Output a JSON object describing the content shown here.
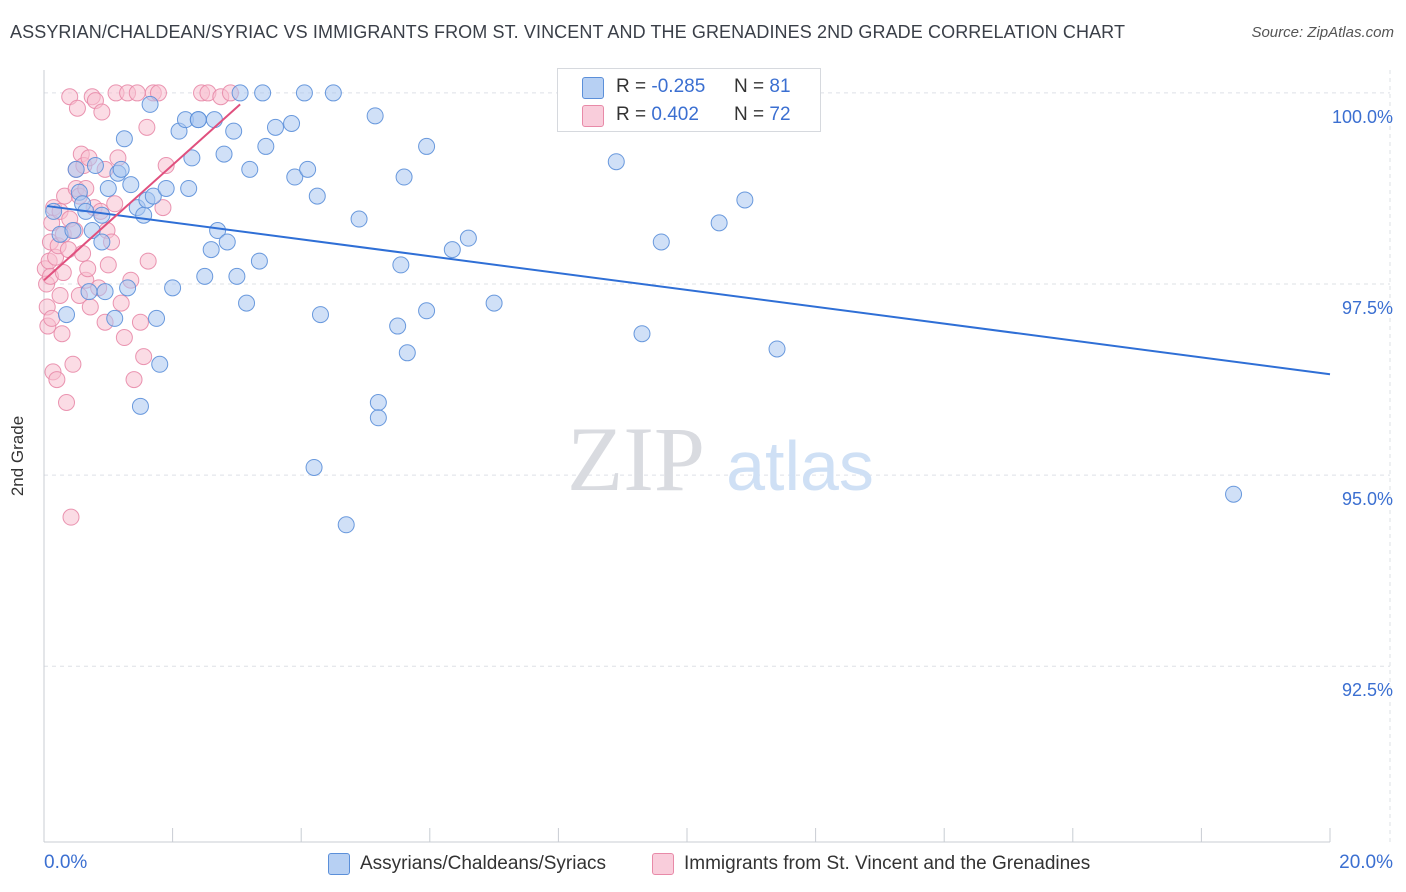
{
  "header": {
    "title": "ASSYRIAN/CHALDEAN/SYRIAC VS IMMIGRANTS FROM ST. VINCENT AND THE GRENADINES 2ND GRADE CORRELATION CHART",
    "source": "Source: ZipAtlas.com"
  },
  "legend": {
    "series1": {
      "r_label": "R =",
      "r_value": "-0.285",
      "n_label": "N =",
      "n_value": "81"
    },
    "series2": {
      "r_label": "R =",
      "r_value": "0.402",
      "n_label": "N =",
      "n_value": "72"
    }
  },
  "watermark": {
    "zip": "ZIP",
    "atlas": "atlas"
  },
  "colors": {
    "blue_fill": "#a9c7f0",
    "blue_stroke": "#5b8fd9",
    "blue_line": "#2f6fd6",
    "pink_fill": "#f7c0d0",
    "pink_stroke": "#e88aa8",
    "pink_line": "#e0507e",
    "tick_label": "#3b6fd1",
    "grid": "#dde0e6"
  },
  "chart_data": {
    "type": "scatter",
    "title": "ASSYRIAN/CHALDEAN/SYRIAC VS IMMIGRANTS FROM ST. VINCENT AND THE GRENADINES 2ND GRADE CORRELATION CHART",
    "xlabel": "",
    "ylabel": "2nd Grade",
    "xlim": [
      0,
      20
    ],
    "ylim": [
      90.2,
      100.3
    ],
    "x_tick_labels": [
      "0.0%",
      "20.0%"
    ],
    "y_ticks": [
      92.5,
      95.0,
      97.5,
      100.0
    ],
    "y_tick_labels": [
      "92.5%",
      "95.0%",
      "97.5%",
      "100.0%"
    ],
    "grid": true,
    "legend_position": "top-center",
    "series": [
      {
        "name": "Assyrians/Chaldeans/Syriacs",
        "color": "blue",
        "trend": {
          "x": [
            0.05,
            20.0
          ],
          "y": [
            98.52,
            96.32
          ]
        },
        "points": [
          [
            0.15,
            98.45
          ],
          [
            0.25,
            98.15
          ],
          [
            0.35,
            97.1
          ],
          [
            0.45,
            98.2
          ],
          [
            0.5,
            99.0
          ],
          [
            0.55,
            98.7
          ],
          [
            0.6,
            98.55
          ],
          [
            0.65,
            98.45
          ],
          [
            0.7,
            97.4
          ],
          [
            0.75,
            98.2
          ],
          [
            0.8,
            99.05
          ],
          [
            0.9,
            98.05
          ],
          [
            0.95,
            97.4
          ],
          [
            1.0,
            98.75
          ],
          [
            1.1,
            97.05
          ],
          [
            1.15,
            98.95
          ],
          [
            1.25,
            99.4
          ],
          [
            1.3,
            97.45
          ],
          [
            1.35,
            98.8
          ],
          [
            1.45,
            98.5
          ],
          [
            1.5,
            95.9
          ],
          [
            1.55,
            98.4
          ],
          [
            1.6,
            98.6
          ],
          [
            1.65,
            99.85
          ],
          [
            1.7,
            98.65
          ],
          [
            1.75,
            97.05
          ],
          [
            1.8,
            96.45
          ],
          [
            1.9,
            98.75
          ],
          [
            2.0,
            97.45
          ],
          [
            2.1,
            99.5
          ],
          [
            2.2,
            99.65
          ],
          [
            2.25,
            98.75
          ],
          [
            2.3,
            99.15
          ],
          [
            2.4,
            99.65
          ],
          [
            2.5,
            97.6
          ],
          [
            2.6,
            97.95
          ],
          [
            2.65,
            99.65
          ],
          [
            2.7,
            98.2
          ],
          [
            2.8,
            99.2
          ],
          [
            2.85,
            98.05
          ],
          [
            2.95,
            99.5
          ],
          [
            3.0,
            97.6
          ],
          [
            3.05,
            100.0
          ],
          [
            3.15,
            97.25
          ],
          [
            3.2,
            99.0
          ],
          [
            3.35,
            97.8
          ],
          [
            3.4,
            100.0
          ],
          [
            3.45,
            99.3
          ],
          [
            3.6,
            99.55
          ],
          [
            3.85,
            99.6
          ],
          [
            3.9,
            98.9
          ],
          [
            4.05,
            100.0
          ],
          [
            4.2,
            95.1
          ],
          [
            4.25,
            98.65
          ],
          [
            4.3,
            97.1
          ],
          [
            4.5,
            100.0
          ],
          [
            4.7,
            94.35
          ],
          [
            4.9,
            98.35
          ],
          [
            5.15,
            99.7
          ],
          [
            5.2,
            95.95
          ],
          [
            5.2,
            95.75
          ],
          [
            5.5,
            96.95
          ],
          [
            5.55,
            97.75
          ],
          [
            5.6,
            98.9
          ],
          [
            5.65,
            96.6
          ],
          [
            5.95,
            97.15
          ],
          [
            5.95,
            99.3
          ],
          [
            6.35,
            97.95
          ],
          [
            6.6,
            98.1
          ],
          [
            7.0,
            97.25
          ],
          [
            8.9,
            99.1
          ],
          [
            9.3,
            96.85
          ],
          [
            9.6,
            98.05
          ],
          [
            10.5,
            98.3
          ],
          [
            10.9,
            98.6
          ],
          [
            11.4,
            96.65
          ],
          [
            18.5,
            94.75
          ],
          [
            2.4,
            99.65
          ],
          [
            1.2,
            99.0
          ],
          [
            0.9,
            98.4
          ],
          [
            4.1,
            99.0
          ]
        ]
      },
      {
        "name": "Immigrants from St. Vincent and the Grenadines",
        "color": "pink",
        "trend": {
          "x": [
            0.0,
            3.05
          ],
          "y": [
            97.55,
            99.85
          ]
        },
        "points": [
          [
            0.02,
            97.7
          ],
          [
            0.04,
            97.5
          ],
          [
            0.05,
            97.2
          ],
          [
            0.06,
            96.95
          ],
          [
            0.08,
            97.8
          ],
          [
            0.1,
            98.05
          ],
          [
            0.1,
            97.6
          ],
          [
            0.12,
            98.3
          ],
          [
            0.12,
            97.05
          ],
          [
            0.14,
            96.35
          ],
          [
            0.15,
            98.5
          ],
          [
            0.18,
            97.85
          ],
          [
            0.2,
            96.25
          ],
          [
            0.22,
            98.0
          ],
          [
            0.25,
            98.45
          ],
          [
            0.25,
            97.35
          ],
          [
            0.28,
            96.85
          ],
          [
            0.3,
            98.15
          ],
          [
            0.3,
            97.65
          ],
          [
            0.32,
            98.65
          ],
          [
            0.35,
            95.95
          ],
          [
            0.38,
            97.95
          ],
          [
            0.4,
            99.95
          ],
          [
            0.4,
            98.35
          ],
          [
            0.42,
            94.45
          ],
          [
            0.45,
            96.45
          ],
          [
            0.48,
            98.2
          ],
          [
            0.5,
            99.0
          ],
          [
            0.5,
            98.75
          ],
          [
            0.52,
            99.8
          ],
          [
            0.55,
            98.65
          ],
          [
            0.55,
            97.35
          ],
          [
            0.58,
            99.2
          ],
          [
            0.6,
            97.9
          ],
          [
            0.62,
            99.05
          ],
          [
            0.65,
            97.55
          ],
          [
            0.65,
            98.75
          ],
          [
            0.68,
            97.7
          ],
          [
            0.7,
            99.15
          ],
          [
            0.72,
            97.2
          ],
          [
            0.75,
            99.95
          ],
          [
            0.78,
            98.5
          ],
          [
            0.8,
            99.9
          ],
          [
            0.85,
            97.45
          ],
          [
            0.88,
            98.45
          ],
          [
            0.9,
            99.75
          ],
          [
            0.95,
            97.0
          ],
          [
            0.95,
            99.0
          ],
          [
            0.98,
            98.2
          ],
          [
            1.0,
            97.75
          ],
          [
            1.05,
            98.05
          ],
          [
            1.1,
            98.55
          ],
          [
            1.12,
            100.0
          ],
          [
            1.15,
            99.15
          ],
          [
            1.2,
            97.25
          ],
          [
            1.25,
            96.8
          ],
          [
            1.3,
            100.0
          ],
          [
            1.35,
            97.55
          ],
          [
            1.4,
            96.25
          ],
          [
            1.45,
            100.0
          ],
          [
            1.5,
            97.0
          ],
          [
            1.55,
            96.55
          ],
          [
            1.6,
            99.55
          ],
          [
            1.62,
            97.8
          ],
          [
            1.7,
            100.0
          ],
          [
            1.78,
            100.0
          ],
          [
            1.85,
            98.5
          ],
          [
            1.9,
            99.05
          ],
          [
            2.45,
            100.0
          ],
          [
            2.55,
            100.0
          ],
          [
            2.75,
            99.95
          ],
          [
            2.9,
            100.0
          ]
        ]
      }
    ]
  }
}
